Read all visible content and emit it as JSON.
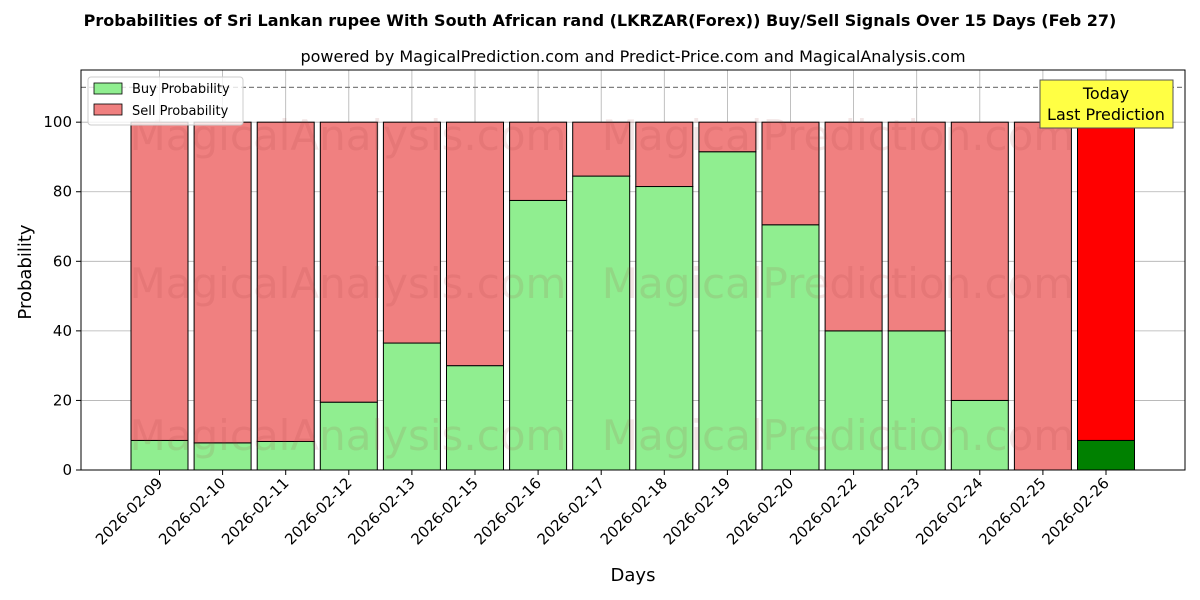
{
  "chart_data": {
    "type": "bar",
    "title": "Probabilities of Sri Lankan rupee With South African rand (LKRZAR(Forex)) Buy/Sell Signals Over 15 Days (Feb 27)",
    "subtitle": "powered by MagicalPrediction.com and Predict-Price.com and MagicalAnalysis.com",
    "xlabel": "Days",
    "ylabel": "Probability",
    "ylim": [
      0,
      115
    ],
    "yticks": [
      0,
      20,
      40,
      60,
      80,
      100
    ],
    "reference_line": 110,
    "grid": true,
    "legend_position": "top-left",
    "stacked": true,
    "categories": [
      "2026-02-09",
      "2026-02-10",
      "2026-02-11",
      "2026-02-12",
      "2026-02-13",
      "2026-02-15",
      "2026-02-16",
      "2026-02-17",
      "2026-02-18",
      "2026-02-19",
      "2026-02-20",
      "2026-02-22",
      "2026-02-23",
      "2026-02-24",
      "2026-02-25",
      "2026-02-26"
    ],
    "series": [
      {
        "name": "Buy Probability",
        "color": "#90ee90",
        "values": [
          8.5,
          7.8,
          8.2,
          19.5,
          36.5,
          30,
          77.5,
          84.5,
          81.5,
          91.5,
          70.5,
          40,
          40,
          20,
          0,
          8.5
        ]
      },
      {
        "name": "Sell Probability",
        "color": "#f08080",
        "values": [
          91.5,
          92.2,
          91.8,
          80.5,
          63.5,
          70,
          22.5,
          15.5,
          18.5,
          8.5,
          29.5,
          60,
          60,
          80,
          100,
          91.5
        ]
      }
    ],
    "highlight": {
      "index": 15,
      "buy_color": "#008000",
      "sell_color": "#ff0000"
    },
    "annotation": {
      "line1": "Today",
      "line2": "Last Prediction",
      "background": "#ffff44"
    }
  },
  "watermarks": [
    "MagicalAnalysis.com",
    "MagicalPrediction.com",
    "MagicalAnalysis.com",
    "MagicalPrediction.com",
    "MagicalAnalysis.com",
    "MagicalPrediction.com"
  ]
}
